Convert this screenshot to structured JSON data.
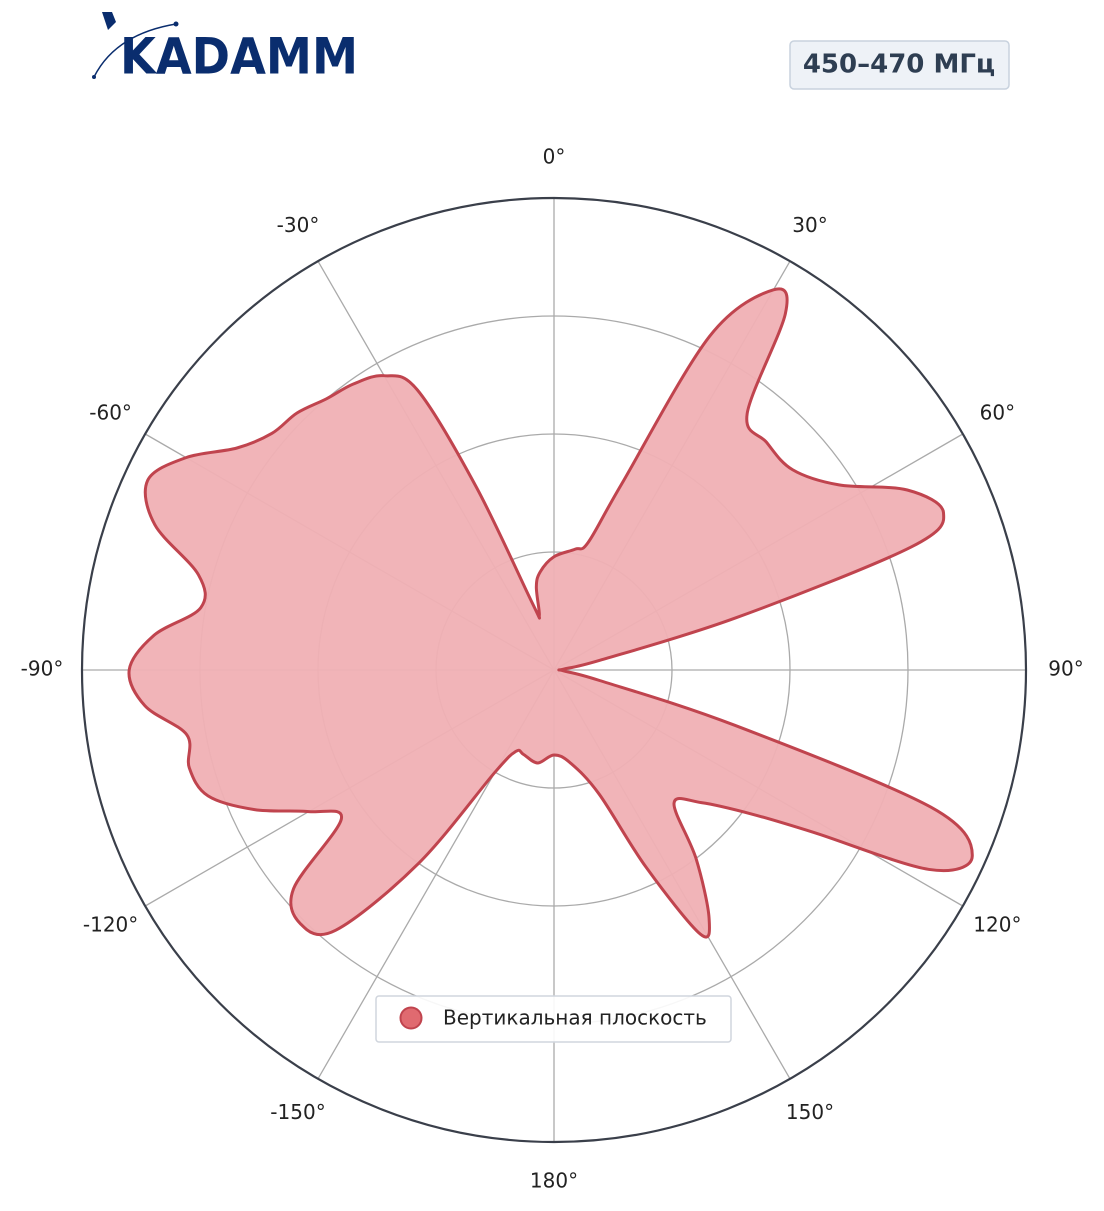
{
  "logo": {
    "text": "KADAMM"
  },
  "chart_data": {
    "type": "polar",
    "title": "450–470 МГц",
    "direction": "clockwise",
    "zero": "top",
    "rlim": [
      0,
      1
    ],
    "rticks": [
      0.25,
      0.5,
      0.75,
      1
    ],
    "grid": true,
    "legend": "lower center",
    "thetaticks": [
      {
        "value": 0,
        "label": "0°"
      },
      {
        "value": 30,
        "label": "30°"
      },
      {
        "value": 60,
        "label": "60°"
      },
      {
        "value": 90,
        "label": "90°"
      },
      {
        "value": 120,
        "label": "120°"
      },
      {
        "value": 150,
        "label": "150°"
      },
      {
        "value": 180,
        "label": "180°"
      },
      {
        "value": -150,
        "label": "-150°"
      },
      {
        "value": -120,
        "label": "-120°"
      },
      {
        "value": -90,
        "label": "-90°"
      },
      {
        "value": -60,
        "label": "-60°"
      },
      {
        "value": -30,
        "label": "-30°"
      }
    ],
    "series": [
      {
        "name": "Вертикальная плоскость",
        "color": "#c0444e",
        "fill": "#f0b0b4",
        "marker_color": "#e06a70",
        "theta": [
          -180,
          -170,
          -160,
          -155,
          -150,
          -145,
          -140,
          -135,
          -130,
          -125,
          -120,
          -115,
          -110,
          -105,
          -100,
          -95,
          -90,
          -85,
          -80,
          -75,
          -70,
          -65,
          -60,
          -55,
          -50,
          -45,
          -40,
          -35,
          -30,
          -26,
          -23,
          -18,
          -15,
          -12,
          -8,
          0,
          10,
          15,
          20,
          25,
          30,
          33,
          37,
          43,
          50,
          57,
          63,
          68,
          71,
          74,
          78,
          85,
          95,
          103,
          107,
          110,
          114,
          118,
          122,
          126,
          132,
          138,
          143,
          148,
          151,
          155,
          160,
          170
        ],
        "values": [
          0.18,
          0.2,
          0.19,
          0.19,
          0.25,
          0.5,
          0.72,
          0.76,
          0.72,
          0.55,
          0.6,
          0.7,
          0.78,
          0.8,
          0.79,
          0.87,
          0.9,
          0.85,
          0.76,
          0.78,
          0.9,
          0.95,
          0.9,
          0.82,
          0.78,
          0.77,
          0.75,
          0.74,
          0.72,
          0.66,
          0.42,
          0.15,
          0.12,
          0.18,
          0.21,
          0.24,
          0.26,
          0.28,
          0.42,
          0.78,
          0.93,
          0.9,
          0.68,
          0.66,
          0.66,
          0.72,
          0.84,
          0.89,
          0.8,
          0.4,
          0.1,
          0.02,
          0.02,
          0.1,
          0.4,
          0.85,
          0.97,
          0.9,
          0.65,
          0.52,
          0.42,
          0.38,
          0.5,
          0.62,
          0.64,
          0.46,
          0.28,
          0.2
        ]
      }
    ]
  }
}
